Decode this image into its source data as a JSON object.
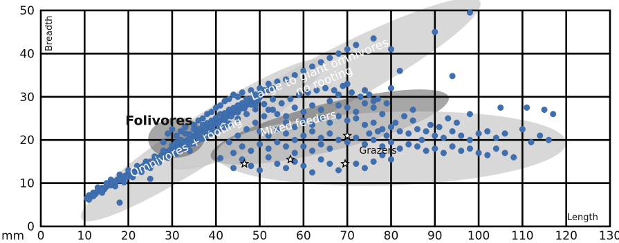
{
  "chart_data": {
    "type": "scatter",
    "xlabel": "Length",
    "ylabel": "Breadth",
    "unit_label": "mm",
    "xlim": [
      0,
      130
    ],
    "ylim": [
      0,
      50
    ],
    "x_ticks": [
      "0",
      "10",
      "20",
      "30",
      "40",
      "50",
      "60",
      "70",
      "80",
      "90",
      "100",
      "110",
      "120",
      "130"
    ],
    "y_ticks": [
      "0",
      "10",
      "20",
      "30",
      "40",
      "50"
    ],
    "grid": true,
    "series_color": "#3f6fae",
    "regions": [
      {
        "label": "Large to giant omnivores no rooting",
        "label_lines": [
          "Large to giant omnivores",
          "no rooting"
        ],
        "center": [
          65,
          33
        ],
        "radii": [
          40,
          6.5
        ],
        "angle_deg": 28,
        "tone": "light",
        "label_color": "#ffffff"
      },
      {
        "label": "Omnivores + rooting",
        "label_lines": [
          "Omnivores + rooting"
        ],
        "center": [
          37,
          20
        ],
        "radii": [
          33,
          5.4
        ],
        "angle_deg": 33,
        "tone": "light",
        "label_color": "#ffffff"
      },
      {
        "label": "Folivores",
        "label_lines": [
          "Folivores"
        ],
        "center": [
          31,
          20.5
        ],
        "radii": [
          6.5,
          4.6
        ],
        "angle_deg": 5,
        "tone": "dark",
        "label_color": "#111111"
      },
      {
        "label": "Mixed feeders",
        "label_lines": [
          "Mixed feeders"
        ],
        "center": [
          66,
          23
        ],
        "radii": [
          28,
          5.5
        ],
        "angle_deg": 14,
        "tone": "dark",
        "label_color": "#ffffff"
      },
      {
        "label": "Grazers",
        "label_lines": [
          "Grazers"
        ],
        "center": [
          80,
          18
        ],
        "radii": [
          40,
          8.5
        ],
        "angle_deg": 2,
        "tone": "light",
        "label_color": "#111111"
      }
    ],
    "highlight_points": [
      {
        "x": 46.5,
        "y": 14.5
      },
      {
        "x": 57,
        "y": 15.5
      },
      {
        "x": 69.5,
        "y": 14.5
      },
      {
        "x": 70,
        "y": 21
      }
    ],
    "points": [
      [
        10.5,
        6.5
      ],
      [
        11,
        7.2
      ],
      [
        11.5,
        6.9
      ],
      [
        12,
        7.8
      ],
      [
        12.5,
        7.5
      ],
      [
        13,
        8.3
      ],
      [
        13.5,
        8.1
      ],
      [
        14,
        8.9
      ],
      [
        14.5,
        8.6
      ],
      [
        15,
        9.2
      ],
      [
        15.5,
        9.8
      ],
      [
        16,
        9.5
      ],
      [
        16.5,
        10.3
      ],
      [
        17,
        10.1
      ],
      [
        17.5,
        10.8
      ],
      [
        18,
        10.6
      ],
      [
        18.5,
        11.3
      ],
      [
        19,
        11.1
      ],
      [
        19.5,
        11.8
      ],
      [
        20,
        12.2
      ],
      [
        20.5,
        11.9
      ],
      [
        21,
        12.7
      ],
      [
        21.5,
        12.5
      ],
      [
        22,
        13.2
      ],
      [
        22.5,
        12.9
      ],
      [
        23,
        13.7
      ],
      [
        23.5,
        14.1
      ],
      [
        24,
        13.8
      ],
      [
        24.5,
        14.6
      ],
      [
        25,
        15.0
      ],
      [
        25.5,
        14.7
      ],
      [
        26,
        15.5
      ],
      [
        26.5,
        15.9
      ],
      [
        27,
        15.6
      ],
      [
        27.5,
        16.4
      ],
      [
        28,
        16.8
      ],
      [
        28.5,
        16.5
      ],
      [
        29,
        17.3
      ],
      [
        29.5,
        17.7
      ],
      [
        30,
        17.4
      ],
      [
        30.5,
        18.2
      ],
      [
        31,
        18.6
      ],
      [
        31.5,
        18.3
      ],
      [
        32,
        19.1
      ],
      [
        32.5,
        19.5
      ],
      [
        33,
        19.2
      ],
      [
        33.5,
        20.0
      ],
      [
        34,
        20.4
      ],
      [
        34.5,
        20.1
      ],
      [
        35,
        20.9
      ],
      [
        35.5,
        21.3
      ],
      [
        36,
        21.0
      ],
      [
        36.5,
        21.8
      ],
      [
        37,
        22.2
      ],
      [
        37.5,
        21.9
      ],
      [
        38,
        22.7
      ],
      [
        38.5,
        23.1
      ],
      [
        39,
        22.8
      ],
      [
        39.5,
        23.6
      ],
      [
        40,
        24.0
      ],
      [
        40.5,
        23.7
      ],
      [
        41,
        24.5
      ],
      [
        41.5,
        24.9
      ],
      [
        42,
        24.6
      ],
      [
        42.5,
        25.4
      ],
      [
        43,
        25.8
      ],
      [
        43.5,
        25.5
      ],
      [
        44,
        26.3
      ],
      [
        44.5,
        26.7
      ],
      [
        45,
        26.4
      ],
      [
        45.5,
        27.2
      ],
      [
        46,
        27.6
      ],
      [
        46.5,
        27.3
      ],
      [
        47,
        28.1
      ],
      [
        47.5,
        28.5
      ],
      [
        48,
        28.2
      ],
      [
        48.5,
        29.0
      ],
      [
        49,
        29.4
      ],
      [
        49.5,
        29.1
      ],
      [
        50,
        29.9
      ],
      [
        13,
        9.0
      ],
      [
        14,
        7.8
      ],
      [
        16,
        10.8
      ],
      [
        17,
        9.3
      ],
      [
        18,
        12.0
      ],
      [
        19,
        10.2
      ],
      [
        20,
        13.0
      ],
      [
        21,
        11.4
      ],
      [
        22,
        14.0
      ],
      [
        23,
        12.6
      ],
      [
        24,
        15.0
      ],
      [
        25,
        13.5
      ],
      [
        26,
        16.2
      ],
      [
        27,
        14.8
      ],
      [
        28,
        17.5
      ],
      [
        29,
        15.9
      ],
      [
        30,
        18.8
      ],
      [
        31,
        16.9
      ],
      [
        32,
        20.0
      ],
      [
        33,
        18.0
      ],
      [
        34,
        21.3
      ],
      [
        35,
        19.2
      ],
      [
        36,
        22.5
      ],
      [
        37,
        20.3
      ],
      [
        38,
        23.9
      ],
      [
        39,
        21.5
      ],
      [
        40,
        25.1
      ],
      [
        41,
        22.6
      ],
      [
        42,
        26.2
      ],
      [
        43,
        23.8
      ],
      [
        44,
        27.4
      ],
      [
        45,
        24.9
      ],
      [
        46,
        28.5
      ],
      [
        47,
        26.0
      ],
      [
        48,
        29.6
      ],
      [
        49,
        27.1
      ],
      [
        50,
        30.8
      ],
      [
        51,
        28.3
      ],
      [
        52,
        31.6
      ],
      [
        53,
        29.4
      ],
      [
        18,
        5.5
      ],
      [
        25,
        11.0
      ],
      [
        28,
        19.5
      ],
      [
        29,
        21.5
      ],
      [
        30,
        22.5
      ],
      [
        31,
        21.0
      ],
      [
        32,
        22.0
      ],
      [
        33,
        23.0
      ],
      [
        34,
        17.5
      ],
      [
        36,
        24.5
      ],
      [
        38,
        26.0
      ],
      [
        40,
        27.5
      ],
      [
        42,
        29.0
      ],
      [
        44,
        30.5
      ],
      [
        46,
        31.0
      ],
      [
        48,
        31.5
      ],
      [
        50,
        32.0
      ],
      [
        52,
        33.0
      ],
      [
        54,
        33.5
      ],
      [
        56,
        34.0
      ],
      [
        58,
        35.0
      ],
      [
        60,
        36.0
      ],
      [
        62,
        37.0
      ],
      [
        64,
        38.0
      ],
      [
        66,
        39.0
      ],
      [
        68,
        40.0
      ],
      [
        70,
        41.0
      ],
      [
        72,
        42.0
      ],
      [
        76,
        43.5
      ],
      [
        80,
        41.0
      ],
      [
        82,
        36.0
      ],
      [
        90,
        45.0
      ],
      [
        94,
        34.8
      ],
      [
        98,
        49.5
      ],
      [
        85,
        27.0
      ],
      [
        80,
        32.0
      ],
      [
        76,
        29.0
      ],
      [
        74,
        31.5
      ],
      [
        70,
        33.0
      ],
      [
        68,
        30.5
      ],
      [
        52,
        27.0
      ],
      [
        54,
        26.0
      ],
      [
        56,
        25.5
      ],
      [
        58,
        27.5
      ],
      [
        60,
        26.5
      ],
      [
        62,
        28.0
      ],
      [
        64,
        27.0
      ],
      [
        66,
        29.0
      ],
      [
        68,
        28.0
      ],
      [
        70,
        27.5
      ],
      [
        72,
        26.5
      ],
      [
        74,
        28.5
      ],
      [
        76,
        27.5
      ],
      [
        78,
        26.0
      ],
      [
        56,
        24.0
      ],
      [
        58,
        23.0
      ],
      [
        60,
        24.5
      ],
      [
        62,
        23.5
      ],
      [
        64,
        25.0
      ],
      [
        66,
        24.0
      ],
      [
        68,
        25.5
      ],
      [
        70,
        24.5
      ],
      [
        72,
        25.0
      ],
      [
        74,
        23.5
      ],
      [
        76,
        24.0
      ],
      [
        78,
        22.5
      ],
      [
        80,
        23.0
      ],
      [
        82,
        22.0
      ],
      [
        84,
        21.5
      ],
      [
        86,
        22.5
      ],
      [
        50,
        22.0
      ],
      [
        52,
        21.0
      ],
      [
        54,
        22.5
      ],
      [
        56,
        21.5
      ],
      [
        58,
        20.0
      ],
      [
        60,
        21.0
      ],
      [
        62,
        22.0
      ],
      [
        64,
        20.5
      ],
      [
        66,
        21.5
      ],
      [
        68,
        20.0
      ],
      [
        70,
        19.5
      ],
      [
        72,
        20.5
      ],
      [
        74,
        19.0
      ],
      [
        76,
        20.0
      ],
      [
        78,
        18.5
      ],
      [
        80,
        19.5
      ],
      [
        82,
        18.0
      ],
      [
        84,
        19.0
      ],
      [
        86,
        18.5
      ],
      [
        88,
        17.5
      ],
      [
        90,
        18.0
      ],
      [
        92,
        17.0
      ],
      [
        94,
        18.5
      ],
      [
        96,
        17.5
      ],
      [
        98,
        18.0
      ],
      [
        100,
        17.0
      ],
      [
        102,
        16.5
      ],
      [
        104,
        18.0
      ],
      [
        106,
        17.0
      ],
      [
        108,
        16.0
      ],
      [
        88,
        22.0
      ],
      [
        90,
        21.0
      ],
      [
        92,
        20.5
      ],
      [
        94,
        22.0
      ],
      [
        96,
        21.0
      ],
      [
        98,
        20.0
      ],
      [
        100,
        21.5
      ],
      [
        102,
        22.0
      ],
      [
        104,
        20.5
      ],
      [
        106,
        21.5
      ],
      [
        110,
        22.5
      ],
      [
        112,
        19.5
      ],
      [
        114,
        21.0
      ],
      [
        116,
        20.0
      ],
      [
        117,
        26.0
      ],
      [
        115,
        27.0
      ],
      [
        111,
        27.5
      ],
      [
        105,
        27.5
      ],
      [
        98,
        26.0
      ],
      [
        95,
        24.0
      ],
      [
        93,
        25.0
      ],
      [
        91,
        23.0
      ],
      [
        89,
        23.5
      ],
      [
        87,
        20.0
      ],
      [
        85,
        24.5
      ],
      [
        83,
        25.5
      ],
      [
        81,
        24.0
      ],
      [
        79,
        21.0
      ],
      [
        77,
        22.0
      ],
      [
        75,
        21.5
      ],
      [
        44,
        13.5
      ],
      [
        46,
        15.5
      ],
      [
        48,
        14.0
      ],
      [
        50,
        13.0
      ],
      [
        52,
        16.0
      ],
      [
        54,
        14.5
      ],
      [
        56,
        13.5
      ],
      [
        58,
        15.0
      ],
      [
        60,
        14.0
      ],
      [
        62,
        12.5
      ],
      [
        64,
        15.5
      ],
      [
        66,
        14.5
      ],
      [
        68,
        13.0
      ],
      [
        72,
        14.5
      ],
      [
        74,
        13.5
      ],
      [
        76,
        15.0
      ],
      [
        78,
        16.5
      ],
      [
        80,
        15.5
      ],
      [
        44,
        17.0
      ],
      [
        46,
        18.5
      ],
      [
        48,
        17.5
      ],
      [
        50,
        19.0
      ],
      [
        52,
        18.0
      ],
      [
        54,
        19.5
      ],
      [
        56,
        18.5
      ],
      [
        58,
        17.0
      ],
      [
        60,
        18.5
      ],
      [
        62,
        17.5
      ],
      [
        64,
        19.0
      ],
      [
        66,
        18.0
      ],
      [
        41,
        15.8
      ],
      [
        43,
        19.5
      ],
      [
        45,
        21.0
      ],
      [
        47,
        22.5
      ],
      [
        49,
        24.0
      ],
      [
        51,
        25.5
      ],
      [
        53,
        27.0
      ],
      [
        55,
        28.5
      ],
      [
        57,
        29.5
      ],
      [
        59,
        30.5
      ],
      [
        61,
        31.0
      ],
      [
        63,
        31.5
      ],
      [
        65,
        32.0
      ],
      [
        67,
        31.5
      ],
      [
        69,
        32.5
      ],
      [
        71,
        31.0
      ],
      [
        73,
        30.0
      ],
      [
        75,
        30.5
      ],
      [
        77,
        29.5
      ],
      [
        79,
        28.5
      ],
      [
        35,
        23.5
      ],
      [
        37,
        25.0
      ],
      [
        39,
        26.5
      ],
      [
        41,
        28.0
      ],
      [
        43,
        29.5
      ],
      [
        45,
        30.0
      ],
      [
        47,
        29.5
      ],
      [
        49,
        30.5
      ],
      [
        51,
        31.5
      ],
      [
        53,
        32.0
      ],
      [
        31,
        19.5
      ],
      [
        33,
        21.5
      ],
      [
        35,
        22.5
      ],
      [
        37,
        23.5
      ],
      [
        39,
        24.5
      ],
      [
        41,
        26.0
      ],
      [
        43,
        27.0
      ],
      [
        45,
        28.0
      ],
      [
        47,
        29.0
      ],
      [
        49,
        28.0
      ],
      [
        24,
        14.3
      ],
      [
        26,
        15.0
      ],
      [
        28,
        16.0
      ],
      [
        30,
        17.0
      ],
      [
        32,
        18.0
      ],
      [
        34,
        19.0
      ],
      [
        36,
        20.0
      ],
      [
        38,
        21.0
      ],
      [
        40,
        22.0
      ],
      [
        42,
        23.0
      ],
      [
        22,
        13.5
      ],
      [
        20,
        11.5
      ],
      [
        18,
        11.0
      ],
      [
        16,
        9.8
      ],
      [
        14,
        8.5
      ],
      [
        12,
        7.0
      ],
      [
        11,
        6.2
      ],
      [
        15,
        10.0
      ],
      [
        17,
        10.4
      ],
      [
        19,
        11.6
      ]
    ]
  }
}
